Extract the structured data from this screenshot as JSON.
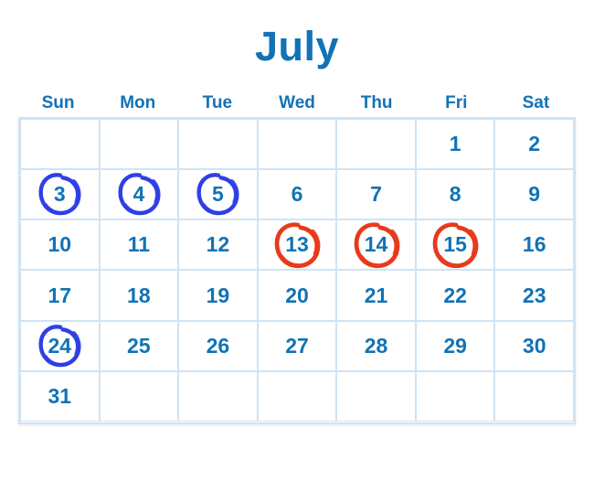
{
  "title": "July",
  "weekdays": [
    "Sun",
    "Mon",
    "Tue",
    "Wed",
    "Thu",
    "Fri",
    "Sat"
  ],
  "weeks": [
    [
      "",
      "",
      "",
      "",
      "",
      "1",
      "2"
    ],
    [
      "3",
      "4",
      "5",
      "6",
      "7",
      "8",
      "9"
    ],
    [
      "10",
      "11",
      "12",
      "13",
      "14",
      "15",
      "16"
    ],
    [
      "17",
      "18",
      "19",
      "20",
      "21",
      "22",
      "23"
    ],
    [
      "24",
      "25",
      "26",
      "27",
      "28",
      "29",
      "30"
    ],
    [
      "31",
      "",
      "",
      "",
      "",
      "",
      ""
    ]
  ],
  "annotations": {
    "blue_circle_dates": [
      "3",
      "4",
      "5",
      "24"
    ],
    "red_circle_dates": [
      "13",
      "14",
      "15"
    ]
  },
  "colors": {
    "title_text": "#1173b6",
    "weekday_text": "#1173b6",
    "date_text": "#1173b6",
    "grid_border": "#cfe3f4",
    "background": "#ffffff",
    "blue_marker": "#2f3fe6",
    "red_marker": "#e8391b"
  }
}
